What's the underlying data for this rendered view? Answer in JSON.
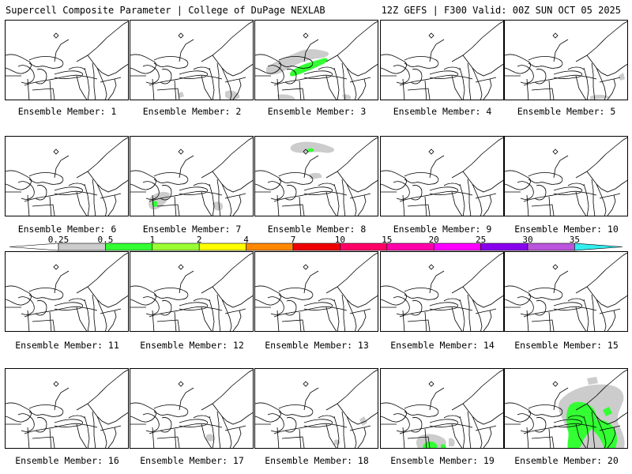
{
  "header": {
    "left": "Supercell Composite Parameter | College of DuPage NEXLAB",
    "right": "12Z GEFS | F300 Valid: 00Z SUN OCT 05 2025"
  },
  "members": [
    {
      "label": "Ensemble Member: 1",
      "shading": []
    },
    {
      "label": "Ensemble Member: 2",
      "shading": [
        "gray-light"
      ]
    },
    {
      "label": "Ensemble Member: 3",
      "shading": [
        "gray-light",
        "green"
      ]
    },
    {
      "label": "Ensemble Member: 4",
      "shading": []
    },
    {
      "label": "Ensemble Member: 5",
      "shading": [
        "gray-light"
      ]
    },
    {
      "label": "Ensemble Member: 6",
      "shading": []
    },
    {
      "label": "Ensemble Member: 7",
      "shading": [
        "gray-light",
        "green"
      ]
    },
    {
      "label": "Ensemble Member: 8",
      "shading": [
        "gray-light",
        "green"
      ]
    },
    {
      "label": "Ensemble Member: 9",
      "shading": []
    },
    {
      "label": "Ensemble Member: 10",
      "shading": []
    },
    {
      "label": "Ensemble Member: 11",
      "shading": []
    },
    {
      "label": "Ensemble Member: 12",
      "shading": []
    },
    {
      "label": "Ensemble Member: 13",
      "shading": []
    },
    {
      "label": "Ensemble Member: 14",
      "shading": []
    },
    {
      "label": "Ensemble Member: 15",
      "shading": []
    },
    {
      "label": "Ensemble Member: 16",
      "shading": []
    },
    {
      "label": "Ensemble Member: 17",
      "shading": [
        "gray-light"
      ]
    },
    {
      "label": "Ensemble Member: 18",
      "shading": [
        "gray-light"
      ]
    },
    {
      "label": "Ensemble Member: 19",
      "shading": [
        "gray-light",
        "green"
      ]
    },
    {
      "label": "Ensemble Member: 20",
      "shading": [
        "gray-light",
        "green"
      ]
    }
  ],
  "colorbar": {
    "labels": [
      "0.25",
      "0.5",
      "1",
      "2",
      "4",
      "7",
      "10",
      "15",
      "20",
      "25",
      "30",
      "35"
    ],
    "colors": [
      "#cccccc",
      "#33ff33",
      "#99ff33",
      "#ffff00",
      "#ff8800",
      "#ee0000",
      "#ff0066",
      "#ff00aa",
      "#ff00ff",
      "#8800ee",
      "#bb55dd",
      "#33eeee"
    ]
  },
  "colors": {
    "outline": "#000000",
    "background": "#ffffff",
    "shade_low": "#cccccc",
    "shade_green": "#33ff33"
  }
}
